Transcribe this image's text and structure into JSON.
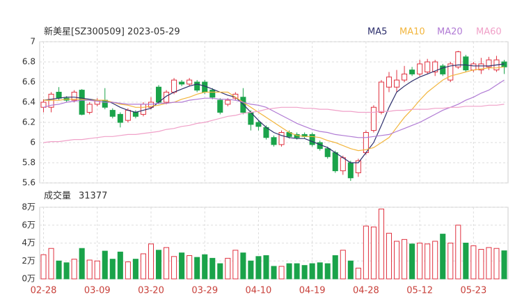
{
  "chart_data": {
    "type": "candlestick",
    "title": "新美星[SZ300509] 2023-05-29",
    "categories": [
      "02-28",
      null,
      null,
      null,
      null,
      null,
      null,
      "03-09",
      null,
      null,
      null,
      null,
      null,
      null,
      "03-20",
      null,
      null,
      null,
      null,
      null,
      null,
      "03-29",
      null,
      null,
      null,
      null,
      null,
      null,
      "04-10",
      null,
      null,
      null,
      null,
      null,
      null,
      "04-19",
      null,
      null,
      null,
      null,
      null,
      null,
      "04-28",
      null,
      null,
      null,
      null,
      null,
      null,
      "05-12",
      null,
      null,
      null,
      null,
      null,
      null,
      "05-23",
      null,
      null,
      null,
      null
    ],
    "open": [
      6.35,
      6.35,
      6.5,
      6.44,
      6.42,
      6.52,
      6.3,
      6.38,
      6.42,
      6.32,
      6.28,
      6.22,
      6.3,
      6.28,
      6.35,
      6.55,
      6.4,
      6.5,
      6.6,
      6.58,
      6.6,
      6.6,
      6.52,
      6.42,
      6.38,
      6.44,
      6.45,
      6.3,
      6.2,
      6.15,
      6.05,
      5.98,
      6.1,
      6.08,
      6.08,
      6.08,
      6.0,
      5.94,
      5.9,
      5.72,
      5.8,
      5.7,
      5.9,
      6.12,
      6.3,
      6.55,
      6.55,
      6.62,
      6.72,
      6.68,
      6.7,
      6.7,
      6.76,
      6.62,
      6.75,
      6.85,
      6.72,
      6.72,
      6.75,
      6.72,
      6.8
    ],
    "high": [
      6.43,
      6.5,
      6.55,
      6.46,
      6.52,
      6.53,
      6.4,
      6.44,
      6.54,
      6.34,
      6.3,
      6.34,
      6.32,
      6.4,
      6.45,
      6.57,
      6.52,
      6.64,
      6.62,
      6.64,
      6.62,
      6.62,
      6.54,
      6.44,
      6.44,
      6.5,
      6.54,
      6.32,
      6.22,
      6.17,
      6.07,
      6.12,
      6.12,
      6.1,
      6.1,
      6.1,
      6.02,
      5.96,
      5.92,
      5.87,
      5.82,
      5.84,
      6.12,
      6.37,
      6.62,
      6.7,
      6.72,
      6.76,
      6.75,
      6.82,
      6.83,
      6.82,
      6.78,
      6.8,
      6.91,
      6.87,
      6.8,
      6.84,
      6.85,
      6.86,
      6.82
    ],
    "low": [
      6.3,
      6.3,
      6.42,
      6.4,
      6.4,
      6.27,
      6.28,
      6.36,
      6.33,
      6.24,
      6.15,
      6.2,
      6.24,
      6.26,
      6.33,
      6.38,
      6.38,
      6.48,
      6.56,
      6.56,
      6.5,
      6.48,
      6.43,
      6.28,
      6.36,
      6.42,
      6.28,
      6.12,
      6.12,
      6.03,
      5.96,
      5.96,
      6.04,
      6.03,
      6.04,
      5.96,
      5.92,
      5.84,
      5.7,
      5.68,
      5.62,
      5.66,
      5.88,
      6.1,
      6.28,
      6.5,
      6.5,
      6.6,
      6.66,
      6.66,
      6.68,
      6.66,
      6.66,
      6.6,
      6.73,
      6.7,
      6.7,
      6.68,
      6.72,
      6.7,
      6.68
    ],
    "close": [
      6.4,
      6.48,
      6.44,
      6.42,
      6.5,
      6.28,
      6.38,
      6.42,
      6.35,
      6.26,
      6.2,
      6.32,
      6.26,
      6.38,
      6.4,
      6.4,
      6.5,
      6.62,
      6.58,
      6.62,
      6.52,
      6.5,
      6.45,
      6.3,
      6.42,
      6.48,
      6.3,
      6.18,
      6.16,
      6.05,
      5.98,
      6.1,
      6.06,
      6.05,
      6.06,
      5.98,
      5.94,
      5.86,
      5.72,
      5.85,
      5.65,
      5.82,
      6.1,
      6.35,
      6.6,
      6.65,
      6.62,
      6.68,
      6.68,
      6.78,
      6.8,
      6.8,
      6.68,
      6.78,
      6.9,
      6.72,
      6.78,
      6.78,
      6.82,
      6.82,
      6.75
    ],
    "up_color": "#e0313f",
    "down_color": "#1aa34a",
    "ylim": [
      5.6,
      7
    ],
    "yticks": [
      5.6,
      5.8,
      6,
      6.2,
      6.4,
      6.6,
      6.8,
      7
    ],
    "grid": true,
    "series": [
      {
        "name": "MA5",
        "color": "#2b2d6b",
        "values": [
          6.42,
          6.43,
          6.44,
          6.45,
          6.45,
          6.44,
          6.43,
          6.42,
          6.42,
          6.39,
          6.35,
          6.32,
          6.3,
          6.32,
          6.34,
          6.4,
          6.46,
          6.5,
          6.53,
          6.56,
          6.58,
          6.56,
          6.53,
          6.5,
          6.47,
          6.45,
          6.38,
          6.3,
          6.22,
          6.15,
          6.1,
          6.07,
          6.05,
          6.04,
          6.04,
          6.01,
          5.98,
          5.95,
          5.9,
          5.85,
          5.8,
          5.8,
          5.9,
          6.0,
          6.17,
          6.35,
          6.5,
          6.56,
          6.61,
          6.65,
          6.68,
          6.71,
          6.74,
          6.76,
          6.77,
          6.77,
          6.76,
          6.76,
          6.76,
          6.77,
          6.78
        ]
      },
      {
        "name": "MA10",
        "color": "#f2b53c",
        "values": [
          6.42,
          6.42,
          6.42,
          6.43,
          6.43,
          6.43,
          6.42,
          6.42,
          6.42,
          6.4,
          6.38,
          6.37,
          6.35,
          6.35,
          6.36,
          6.37,
          6.39,
          6.4,
          6.43,
          6.45,
          6.48,
          6.5,
          6.5,
          6.5,
          6.5,
          6.45,
          6.4,
          6.35,
          6.3,
          6.25,
          6.2,
          6.15,
          6.1,
          6.07,
          6.06,
          6.06,
          6.05,
          6.02,
          6.0,
          5.97,
          5.94,
          5.92,
          5.93,
          5.95,
          6.0,
          6.05,
          6.15,
          6.25,
          6.33,
          6.42,
          6.5,
          6.56,
          6.62,
          6.66,
          6.68,
          6.7,
          6.72,
          6.73,
          6.74,
          6.74,
          6.75
        ]
      },
      {
        "name": "MA20",
        "color": "#b07ad4",
        "values": [
          6.35,
          6.37,
          6.38,
          6.4,
          6.41,
          6.42,
          6.42,
          6.41,
          6.4,
          6.4,
          6.39,
          6.38,
          6.38,
          6.38,
          6.38,
          6.39,
          6.39,
          6.4,
          6.4,
          6.42,
          6.43,
          6.44,
          6.44,
          6.43,
          6.43,
          6.42,
          6.4,
          6.38,
          6.37,
          6.35,
          6.31,
          6.27,
          6.23,
          6.19,
          6.16,
          6.13,
          6.11,
          6.1,
          6.08,
          6.07,
          6.06,
          6.05,
          6.05,
          6.06,
          6.07,
          6.08,
          6.11,
          6.14,
          6.17,
          6.2,
          6.24,
          6.28,
          6.32,
          6.35,
          6.38,
          6.42,
          6.45,
          6.49,
          6.52,
          6.57,
          6.62
        ]
      },
      {
        "name": "MA60",
        "color": "#f0a0c8",
        "values": [
          6.0,
          6.01,
          6.01,
          6.02,
          6.03,
          6.03,
          6.04,
          6.05,
          6.06,
          6.06,
          6.07,
          6.08,
          6.08,
          6.09,
          6.1,
          6.11,
          6.13,
          6.14,
          6.16,
          6.17,
          6.19,
          6.2,
          6.22,
          6.24,
          6.26,
          6.27,
          6.29,
          6.3,
          6.31,
          6.33,
          6.34,
          6.35,
          6.35,
          6.35,
          6.34,
          6.34,
          6.33,
          6.33,
          6.32,
          6.31,
          6.31,
          6.3,
          6.3,
          6.3,
          6.31,
          6.31,
          6.32,
          6.32,
          6.33,
          6.33,
          6.33,
          6.34,
          6.34,
          6.35,
          6.35,
          6.36,
          6.36,
          6.36,
          6.37,
          6.37,
          6.38
        ]
      }
    ],
    "volume": {
      "label": "成交量",
      "values": [
        27000,
        34000,
        20000,
        18000,
        22000,
        34000,
        21000,
        20000,
        31000,
        22000,
        30000,
        19000,
        22000,
        28000,
        39000,
        32000,
        35000,
        25000,
        29000,
        26000,
        24000,
        27000,
        23000,
        17000,
        23000,
        32000,
        29000,
        20000,
        25000,
        26000,
        14000,
        14000,
        17000,
        17000,
        15000,
        17000,
        18000,
        17000,
        26000,
        32000,
        20000,
        12000,
        59000,
        58000,
        78000,
        51000,
        42000,
        44000,
        39000,
        40000,
        39000,
        42000,
        50000,
        40000,
        60000,
        40000,
        37000,
        33000,
        35000,
        34000,
        31377
      ],
      "ylim": [
        0,
        80000
      ],
      "yticks": [
        {
          "value": 0,
          "label": "0万"
        },
        {
          "value": 20000,
          "label": "2万"
        },
        {
          "value": 40000,
          "label": "4万"
        },
        {
          "value": 60000,
          "label": "6万"
        },
        {
          "value": 80000,
          "label": "8万"
        }
      ]
    }
  }
}
